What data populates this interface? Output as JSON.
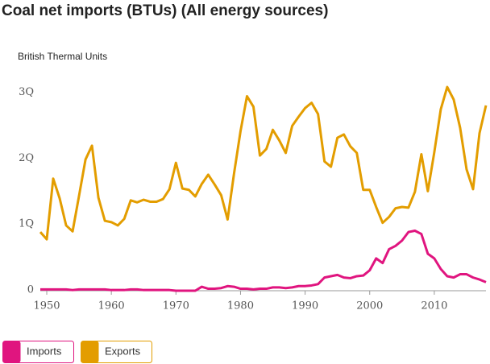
{
  "chart_data": {
    "type": "line",
    "title": "Coal net imports (BTUs) (All energy sources)",
    "y_label": "British Thermal Units",
    "x": [
      1949,
      1950,
      1951,
      1952,
      1953,
      1954,
      1955,
      1956,
      1957,
      1958,
      1959,
      1960,
      1961,
      1962,
      1963,
      1964,
      1965,
      1966,
      1967,
      1968,
      1969,
      1970,
      1971,
      1972,
      1973,
      1974,
      1975,
      1976,
      1977,
      1978,
      1979,
      1980,
      1981,
      1982,
      1983,
      1984,
      1985,
      1986,
      1987,
      1988,
      1989,
      1990,
      1991,
      1992,
      1993,
      1994,
      1995,
      1996,
      1997,
      1998,
      1999,
      2000,
      2001,
      2002,
      2003,
      2004,
      2005,
      2006,
      2007,
      2008,
      2009,
      2010,
      2011,
      2012,
      2013,
      2014,
      2015,
      2016,
      2017,
      2018
    ],
    "series": [
      {
        "name": "Imports",
        "color": "#e0157f",
        "values": [
          0.02,
          0.02,
          0.02,
          0.02,
          0.02,
          0.01,
          0.02,
          0.02,
          0.02,
          0.02,
          0.02,
          0.01,
          0.01,
          0.01,
          0.02,
          0.02,
          0.01,
          0.01,
          0.01,
          0.01,
          0.01,
          0.0,
          0.0,
          0.0,
          0.0,
          0.06,
          0.03,
          0.03,
          0.04,
          0.07,
          0.06,
          0.03,
          0.03,
          0.02,
          0.03,
          0.03,
          0.05,
          0.05,
          0.04,
          0.05,
          0.07,
          0.07,
          0.08,
          0.1,
          0.2,
          0.22,
          0.24,
          0.2,
          0.19,
          0.22,
          0.23,
          0.31,
          0.49,
          0.42,
          0.63,
          0.68,
          0.76,
          0.89,
          0.91,
          0.86,
          0.56,
          0.49,
          0.33,
          0.22,
          0.2,
          0.25,
          0.25,
          0.2,
          0.17,
          0.13
        ]
      },
      {
        "name": "Exports",
        "color": "#e39d00",
        "values": [
          0.89,
          0.78,
          1.7,
          1.4,
          0.99,
          0.9,
          1.44,
          1.99,
          2.2,
          1.41,
          1.06,
          1.04,
          0.99,
          1.09,
          1.37,
          1.34,
          1.38,
          1.35,
          1.35,
          1.39,
          1.54,
          1.94,
          1.55,
          1.53,
          1.43,
          1.62,
          1.76,
          1.61,
          1.45,
          1.08,
          1.78,
          2.42,
          2.95,
          2.79,
          2.05,
          2.15,
          2.44,
          2.28,
          2.09,
          2.5,
          2.64,
          2.77,
          2.85,
          2.68,
          1.96,
          1.88,
          2.32,
          2.37,
          2.19,
          2.09,
          1.53,
          1.53,
          1.27,
          1.03,
          1.12,
          1.25,
          1.27,
          1.26,
          1.5,
          2.07,
          1.51,
          2.1,
          2.75,
          3.09,
          2.9,
          2.47,
          1.84,
          1.54,
          2.39,
          2.81
        ]
      }
    ],
    "xlim": [
      1949,
      2018
    ],
    "xticks": [
      1950,
      1960,
      1970,
      1980,
      1990,
      2000,
      2010
    ],
    "ylim": [
      0,
      3.2
    ],
    "yticks": [
      0,
      {
        "value": 1,
        "label": "1Q"
      },
      {
        "value": 2,
        "label": "2Q"
      },
      {
        "value": 3,
        "label": "3Q"
      }
    ],
    "grid": false,
    "legend": "bottom-left"
  }
}
